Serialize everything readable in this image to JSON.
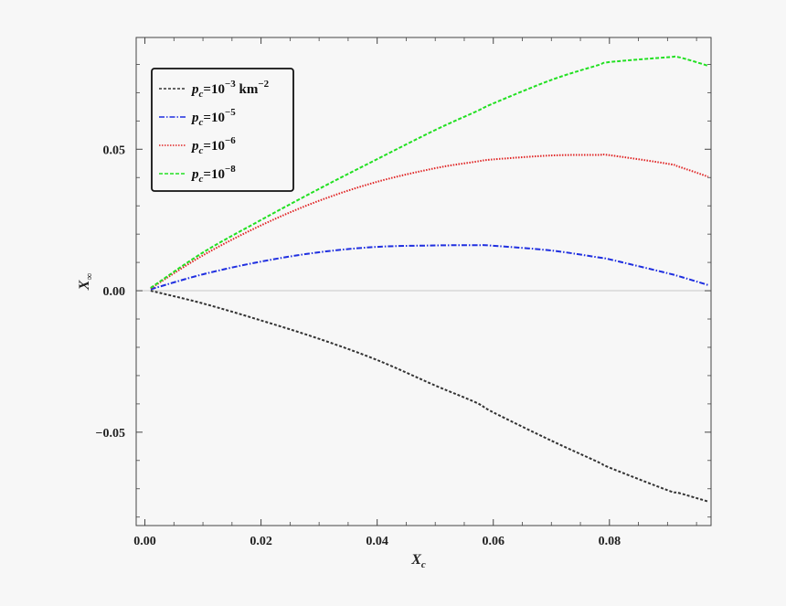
{
  "chart_data": {
    "type": "line",
    "xlabel": "X",
    "xlabel_sub": "c",
    "ylabel": "X",
    "ylabel_sub": "∞",
    "xlim": [
      -0.0015,
      0.0975
    ],
    "ylim": [
      -0.083,
      0.0895
    ],
    "xticks": [
      {
        "value": 0.0,
        "label": "0.00"
      },
      {
        "value": 0.02,
        "label": "0.02"
      },
      {
        "value": 0.04,
        "label": "0.04"
      },
      {
        "value": 0.06,
        "label": "0.06"
      },
      {
        "value": 0.08,
        "label": "0.08"
      }
    ],
    "yticks": [
      {
        "value": -0.05,
        "label": "−0.05"
      },
      {
        "value": 0.0,
        "label": "0.00"
      },
      {
        "value": 0.05,
        "label": "0.05"
      }
    ],
    "grid": false,
    "zero_line": true,
    "legend_position": "top-left",
    "x": [
      0.001,
      0.01,
      0.02,
      0.03,
      0.04,
      0.05,
      0.057,
      0.06,
      0.07,
      0.078,
      0.08,
      0.09,
      0.092,
      0.097
    ],
    "series": [
      {
        "name_base": "p",
        "name_sub": "c",
        "name_eq": "=10",
        "name_exp": "−3",
        "name_unit": " km",
        "name_unit_exp": "−2",
        "color": "#333333",
        "dash": "3,2",
        "values": [
          0.0,
          -0.0045,
          -0.0105,
          -0.017,
          -0.0245,
          -0.0335,
          -0.0395,
          -0.043,
          -0.053,
          -0.0605,
          -0.0625,
          -0.0705,
          -0.0715,
          -0.0745
        ]
      },
      {
        "name_base": "p",
        "name_sub": "c",
        "name_eq": "=10",
        "name_exp": "−5",
        "name_unit": "",
        "name_unit_exp": "",
        "color": "#1f2fe0",
        "dash": "6,2,1.5,2",
        "values": [
          0.0005,
          0.0058,
          0.0103,
          0.0136,
          0.0155,
          0.016,
          0.0161,
          0.0159,
          0.0142,
          0.0118,
          0.0111,
          0.0062,
          0.0051,
          0.002
        ]
      },
      {
        "name_base": "p",
        "name_sub": "c",
        "name_eq": "=10",
        "name_exp": "−6",
        "name_unit": "",
        "name_unit_exp": "",
        "color": "#e02525",
        "dash": "1.5,1.5",
        "values": [
          0.0008,
          0.0125,
          0.0231,
          0.0318,
          0.0385,
          0.0433,
          0.0456,
          0.0464,
          0.0478,
          0.048,
          0.0479,
          0.0449,
          0.0438,
          0.0403
        ]
      },
      {
        "name_base": "p",
        "name_sub": "c",
        "name_eq": "=10",
        "name_exp": "−8",
        "name_unit": "",
        "name_unit_exp": "",
        "color": "#22e022",
        "dash": "4,2",
        "values": [
          0.001,
          0.0135,
          0.025,
          0.036,
          0.0465,
          0.0568,
          0.0633,
          0.0662,
          0.0745,
          0.0797,
          0.0808,
          0.0825,
          0.0825,
          0.0795
        ]
      }
    ]
  }
}
